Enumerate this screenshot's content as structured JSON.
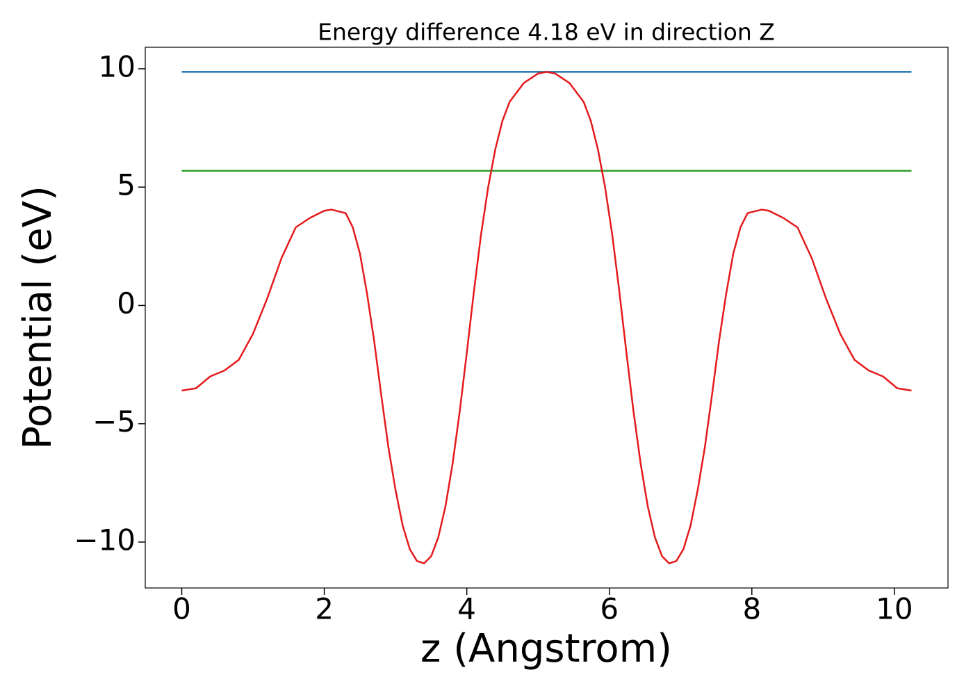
{
  "chart_data": {
    "type": "line",
    "title": "Energy difference 4.18 eV in direction Z",
    "xlabel": "z (Angstrom)",
    "ylabel": "Potential (eV)",
    "xlim": [
      -0.512,
      10.752
    ],
    "ylim": [
      -11.94,
      10.91
    ],
    "xticks": [
      0,
      2,
      4,
      6,
      8,
      10
    ],
    "yticks": [
      {
        "value": -10,
        "label": "−10"
      },
      {
        "value": -5,
        "label": "−5"
      },
      0,
      5,
      10
    ],
    "series": [
      {
        "color": "#1f77b4",
        "x": [
          0,
          10.24
        ],
        "values": [
          9.87,
          9.87
        ]
      },
      {
        "color": "#2ca02c",
        "x": [
          0,
          10.24
        ],
        "values": [
          5.69,
          5.69
        ]
      },
      {
        "color": "#e41a1c",
        "x": [
          0,
          0.2,
          0.4,
          0.6,
          0.8,
          1.0,
          1.2,
          1.4,
          1.6,
          1.8,
          2.0,
          2.1,
          2.3,
          2.4,
          2.5,
          2.6,
          2.7,
          2.8,
          2.9,
          3.0,
          3.1,
          3.2,
          3.3,
          3.4,
          3.5,
          3.6,
          3.7,
          3.8,
          3.9,
          4.0,
          4.1,
          4.2,
          4.3,
          4.4,
          4.5,
          4.6,
          4.8,
          5.0,
          5.12,
          5.24,
          5.44,
          5.64,
          5.74,
          5.84,
          5.94,
          6.04,
          6.14,
          6.24,
          6.34,
          6.44,
          6.54,
          6.64,
          6.74,
          6.84,
          6.94,
          7.04,
          7.14,
          7.24,
          7.34,
          7.44,
          7.54,
          7.64,
          7.74,
          7.84,
          7.94,
          8.14,
          8.24,
          8.44,
          8.64,
          8.84,
          9.04,
          9.24,
          9.44,
          9.64,
          9.84,
          10.04,
          10.24
        ],
        "values": [
          -3.6,
          -3.5,
          -3.0,
          -2.75,
          -2.3,
          -1.2,
          0.3,
          2.0,
          3.3,
          3.7,
          4.0,
          4.05,
          3.9,
          3.3,
          2.2,
          0.5,
          -1.5,
          -3.8,
          -6.0,
          -7.8,
          -9.3,
          -10.3,
          -10.8,
          -10.9,
          -10.6,
          -9.8,
          -8.5,
          -6.7,
          -4.5,
          -2.0,
          0.6,
          3.0,
          5.0,
          6.6,
          7.8,
          8.6,
          9.4,
          9.8,
          9.87,
          9.8,
          9.4,
          8.6,
          7.8,
          6.6,
          5.0,
          3.0,
          0.6,
          -2.0,
          -4.5,
          -6.7,
          -8.5,
          -9.8,
          -10.6,
          -10.9,
          -10.8,
          -10.3,
          -9.3,
          -7.8,
          -6.0,
          -3.8,
          -1.5,
          0.5,
          2.2,
          3.3,
          3.9,
          4.05,
          4.0,
          3.7,
          3.3,
          2.0,
          0.3,
          -1.2,
          -2.3,
          -2.75,
          -3.0,
          -3.5,
          -3.6
        ]
      }
    ]
  }
}
